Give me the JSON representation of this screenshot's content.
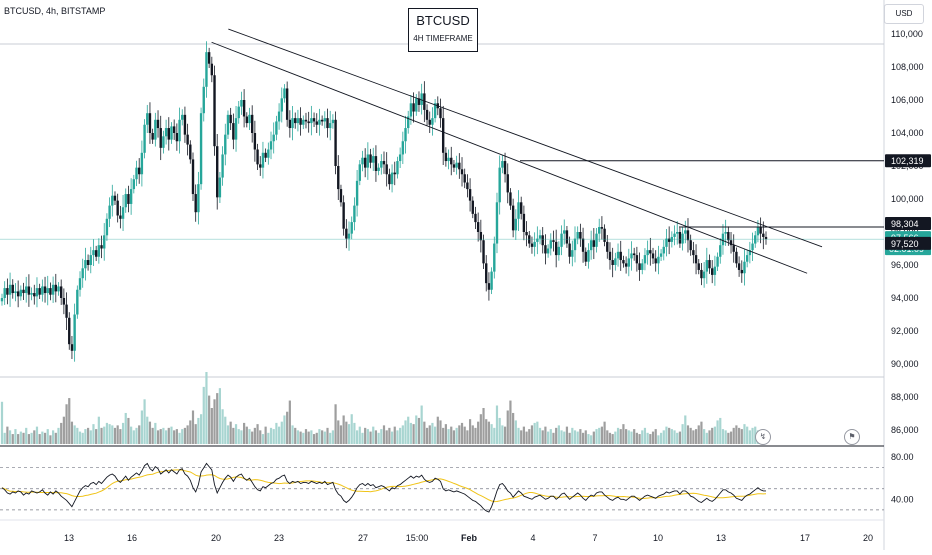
{
  "header": {
    "symbol_line": "BTCUSD, 4h, BITSTAMP",
    "title": "BTCUSD",
    "subtitle": "4H TIMEFRAME",
    "currency_button": "USD"
  },
  "colors": {
    "up": "#26a69a",
    "down": "#131722",
    "volume_up": "#a8d5d1",
    "volume_down": "#9e9e9e",
    "rsi_line": "#131722",
    "rsi_ma": "#f0c419",
    "trendline": "#131722",
    "current_price_line": "#26a69a"
  },
  "chart_data": [
    {
      "type": "candlestick",
      "x_tick_labels": [
        "13",
        "16",
        "20",
        "23",
        "27",
        "15:00",
        "Feb",
        "4",
        "7",
        "10",
        "13",
        "17",
        "20"
      ],
      "y_tick_labels": [
        "110,000",
        "108,000",
        "106,000",
        "104,000",
        "102,000",
        "100,000",
        "98,000",
        "96,000",
        "94,000",
        "92,000",
        "90,000",
        "88,000",
        "86,000"
      ],
      "y_ticks": [
        110000,
        108000,
        106000,
        104000,
        102000,
        100000,
        98000,
        96000,
        94000,
        92000,
        90000,
        88000,
        86000
      ],
      "ylim": [
        85000,
        111000
      ],
      "price_labels": [
        {
          "name": "horizontal-level-high",
          "value": "102,319",
          "price": 102319,
          "style": "level"
        },
        {
          "name": "previous-high",
          "value": "98,304",
          "price": 98304,
          "style": "dark"
        },
        {
          "name": "current-price",
          "value": "97,566",
          "countdown": "02:01:09",
          "price": 97566,
          "style": "accent"
        },
        {
          "name": "mid-level",
          "value": "97,520",
          "price": 97520,
          "style": "dark"
        }
      ],
      "horizontal_levels": [
        102319,
        98304
      ],
      "trendlines": [
        {
          "name": "upper-descending-trendline",
          "from": [
            0.245,
            110300
          ],
          "to": [
            0.882,
            97100
          ]
        },
        {
          "name": "lower-descending-trendline",
          "from": [
            0.227,
            109500
          ],
          "to": [
            0.866,
            95500
          ]
        }
      ],
      "closes": [
        94000,
        94600,
        94200,
        94800,
        94300,
        94400,
        94100,
        94500,
        94300,
        94700,
        94200,
        94300,
        94100,
        94600,
        94200,
        94700,
        94300,
        94600,
        94200,
        94800,
        94400,
        94700,
        94000,
        93600,
        92800,
        91200,
        90800,
        93000,
        94500,
        95200,
        95800,
        96300,
        96000,
        96600,
        96900,
        96500,
        97200,
        97000,
        97800,
        98800,
        99600,
        100200,
        99900,
        99000,
        98800,
        99500,
        100300,
        99700,
        100600,
        101200,
        101900,
        101500,
        102800,
        104500,
        105200,
        104000,
        103600,
        104800,
        104300,
        103100,
        103800,
        104300,
        103600,
        104400,
        104000,
        103500,
        104800,
        105100,
        103900,
        103300,
        102400,
        100300,
        99200,
        100900,
        105200,
        106800,
        108900,
        108200,
        107500,
        103200,
        100100,
        101300,
        102700,
        103900,
        105100,
        104600,
        103600,
        104900,
        105600,
        106000,
        105000,
        104600,
        105100,
        104000,
        103000,
        102100,
        101900,
        102800,
        102500,
        103000,
        103500,
        103900,
        104700,
        105300,
        106100,
        106700,
        104800,
        104300,
        104900,
        104600,
        104900,
        104500,
        104800,
        104700,
        104600,
        104900,
        104700,
        104500,
        104800,
        104700,
        104900,
        104300,
        104600,
        104800,
        102000,
        100600,
        99800,
        98200,
        97600,
        97900,
        98600,
        99600,
        101100,
        102100,
        102500,
        101900,
        102700,
        102200,
        102600,
        101700,
        101900,
        102300,
        102100,
        101500,
        100900,
        101600,
        101500,
        102300,
        102700,
        103500,
        104300,
        105000,
        105800,
        105300,
        106100,
        105700,
        106400,
        105400,
        104800,
        104500,
        104900,
        105800,
        105500,
        104900,
        102800,
        102300,
        102500,
        102100,
        101900,
        102200,
        101800,
        101500,
        101000,
        100600,
        99900,
        99100,
        98600,
        98000,
        97500,
        96100,
        94900,
        94500,
        95600,
        97300,
        99800,
        101900,
        102300,
        101500,
        100400,
        99600,
        98100,
        98800,
        99800,
        99100,
        98000,
        97800,
        97300,
        97100,
        97400,
        97600,
        97800,
        97200,
        96700,
        97000,
        97500,
        97400,
        96600,
        97100,
        97900,
        98100,
        97300,
        96500,
        96900,
        97600,
        98000,
        97600,
        96800,
        96200,
        96900,
        97500,
        97100,
        97900,
        98300,
        98200,
        97400,
        96800,
        96300,
        96000,
        96400,
        96800,
        96300,
        96100,
        95900,
        96400,
        96700,
        96600,
        96100,
        95700,
        96100,
        96600,
        96900,
        96700,
        96400,
        96100,
        96500,
        96700,
        97100,
        97600,
        97400,
        97700,
        97900,
        98000,
        97300,
        97900,
        98100,
        97500,
        96900,
        96600,
        96100,
        95700,
        95200,
        95600,
        96300,
        95800,
        95400,
        95900,
        96500,
        97200,
        97900,
        98000,
        97500,
        97200,
        96800,
        96100,
        95700,
        95500,
        96200,
        96600,
        96900,
        97300,
        97800,
        98300,
        97900,
        97700,
        97566
      ]
    },
    {
      "type": "bar",
      "name": "volume",
      "values": [
        34,
        9,
        14,
        11,
        8,
        12,
        8,
        10,
        9,
        13,
        8,
        9,
        11,
        14,
        8,
        10,
        9,
        12,
        7,
        11,
        9,
        13,
        17,
        22,
        32,
        37,
        18,
        15,
        13,
        10,
        9,
        12,
        13,
        11,
        16,
        12,
        22,
        13,
        14,
        17,
        16,
        15,
        13,
        15,
        12,
        17,
        25,
        21,
        14,
        11,
        13,
        15,
        27,
        36,
        22,
        18,
        13,
        17,
        11,
        12,
        13,
        11,
        13,
        14,
        11,
        12,
        9,
        12,
        13,
        15,
        19,
        27,
        16,
        21,
        24,
        46,
        58,
        39,
        29,
        36,
        41,
        45,
        28,
        22,
        15,
        18,
        13,
        16,
        12,
        11,
        17,
        14,
        12,
        10,
        13,
        16,
        11,
        8,
        14,
        9,
        13,
        12,
        17,
        14,
        18,
        23,
        26,
        35,
        15,
        13,
        11,
        10,
        9,
        12,
        10,
        11,
        8,
        9,
        12,
        11,
        10,
        13,
        9,
        11,
        32,
        19,
        15,
        23,
        18,
        16,
        24,
        17,
        11,
        14,
        9,
        13,
        12,
        10,
        14,
        11,
        9,
        12,
        15,
        11,
        13,
        10,
        14,
        11,
        13,
        15,
        19,
        22,
        17,
        16,
        23,
        21,
        31,
        18,
        13,
        15,
        17,
        14,
        22,
        19,
        13,
        16,
        12,
        14,
        11,
        13,
        15,
        17,
        14,
        11,
        20,
        15,
        13,
        18,
        24,
        29,
        20,
        18,
        16,
        13,
        31,
        21,
        15,
        14,
        27,
        35,
        25,
        19,
        13,
        11,
        14,
        10,
        12,
        15,
        17,
        18,
        13,
        11,
        14,
        10,
        12,
        9,
        13,
        15,
        11,
        10,
        14,
        9,
        13,
        11,
        10,
        12,
        9,
        11,
        8,
        7,
        10,
        12,
        13,
        14,
        18,
        11,
        9,
        8,
        10,
        13,
        12,
        16,
        12,
        11,
        10,
        12,
        9,
        8,
        11,
        13,
        9,
        8,
        10,
        12,
        7,
        9,
        11,
        14,
        13,
        12,
        11,
        9,
        10,
        16,
        23,
        15,
        13,
        11,
        12,
        15,
        18,
        12,
        9,
        11,
        13,
        14,
        19,
        21,
        12,
        11,
        9,
        10,
        13,
        15,
        13,
        12,
        16,
        14,
        11,
        13,
        14,
        11,
        9
      ]
    },
    {
      "type": "line",
      "name": "rsi",
      "y_tick_labels": [
        "80.00",
        "40.00"
      ],
      "y_ticks": [
        80,
        40
      ],
      "ylim": [
        28,
        82
      ],
      "bands": [
        70,
        50,
        30
      ],
      "values": [
        51,
        49,
        46,
        45,
        47,
        46,
        48,
        47,
        44,
        46,
        45,
        48,
        47,
        46,
        47,
        49,
        46,
        44,
        47,
        45,
        48,
        46,
        43,
        41,
        39,
        36,
        33,
        38,
        43,
        48,
        51,
        53,
        52,
        55,
        56,
        54,
        57,
        55,
        58,
        61,
        63,
        64,
        62,
        58,
        56,
        59,
        62,
        58,
        61,
        63,
        65,
        63,
        67,
        72,
        74,
        69,
        67,
        71,
        69,
        64,
        66,
        68,
        65,
        68,
        66,
        64,
        68,
        69,
        64,
        62,
        58,
        51,
        47,
        54,
        66,
        70,
        74,
        71,
        68,
        54,
        46,
        51,
        56,
        60,
        63,
        61,
        57,
        61,
        63,
        64,
        60,
        58,
        60,
        56,
        52,
        49,
        48,
        52,
        51,
        53,
        55,
        56,
        59,
        60,
        62,
        63,
        57,
        55,
        57,
        56,
        57,
        55,
        56,
        56,
        55,
        57,
        56,
        55,
        56,
        55,
        57,
        54,
        55,
        56,
        49,
        45,
        43,
        39,
        37,
        39,
        42,
        46,
        51,
        54,
        55,
        53,
        55,
        53,
        54,
        51,
        52,
        53,
        52,
        50,
        48,
        51,
        50,
        53,
        54,
        56,
        58,
        60,
        62,
        60,
        62,
        61,
        63,
        59,
        57,
        56,
        57,
        60,
        59,
        57,
        50,
        48,
        49,
        48,
        47,
        48,
        47,
        46,
        45,
        43,
        41,
        39,
        38,
        36,
        34,
        31,
        29,
        28,
        33,
        40,
        48,
        54,
        55,
        52,
        48,
        46,
        42,
        45,
        48,
        46,
        43,
        42,
        41,
        40,
        42,
        43,
        44,
        42,
        40,
        41,
        43,
        43,
        40,
        42,
        45,
        46,
        43,
        40,
        42,
        44,
        46,
        44,
        41,
        39,
        42,
        44,
        43,
        46,
        47,
        47,
        44,
        42,
        40,
        39,
        41,
        42,
        40,
        40,
        39,
        41,
        43,
        43,
        41,
        39,
        41,
        43,
        44,
        43,
        42,
        41,
        43,
        44,
        45,
        47,
        46,
        47,
        48,
        48,
        45,
        48,
        48,
        46,
        43,
        42,
        40,
        38,
        37,
        39,
        41,
        39,
        38,
        40,
        43,
        46,
        49,
        49,
        47,
        46,
        44,
        41,
        40,
        39,
        42,
        44,
        45,
        47,
        49,
        51,
        49,
        48,
        48
      ]
    }
  ],
  "icons": {
    "bolt": "↯",
    "flag": "⚑"
  }
}
